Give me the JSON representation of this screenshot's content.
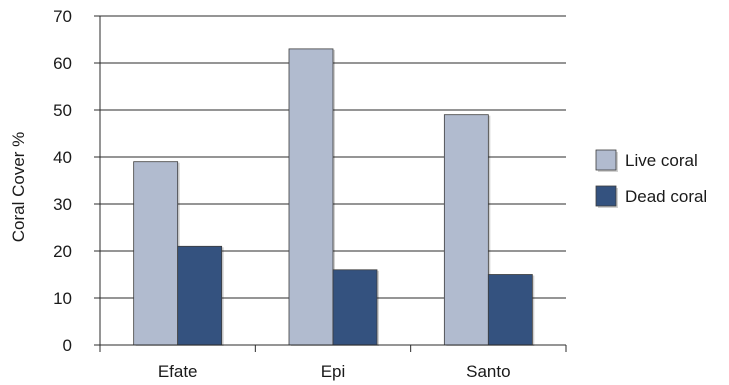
{
  "chart_data": {
    "type": "bar",
    "title": "",
    "xlabel": "",
    "ylabel": "Coral Cover %",
    "categories": [
      "Efate",
      "Epi",
      "Santo"
    ],
    "series": [
      {
        "name": "Live coral",
        "values": [
          39,
          63,
          49
        ],
        "color": "#b1bbcf"
      },
      {
        "name": "Dead coral",
        "values": [
          21,
          16,
          15
        ],
        "color": "#34527f"
      }
    ],
    "ylim": [
      0,
      70
    ],
    "yticks": [
      0,
      10,
      20,
      30,
      40,
      50,
      60,
      70
    ],
    "grid": true,
    "legend_position": "right"
  }
}
